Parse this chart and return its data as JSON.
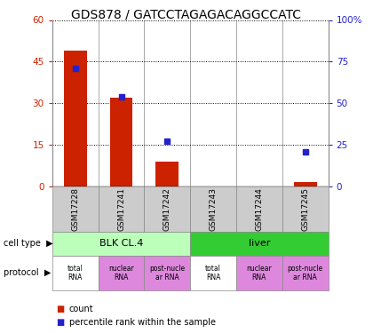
{
  "title": "GDS878 / GATCCTAGAGACAGGCCATC",
  "samples": [
    "GSM17228",
    "GSM17241",
    "GSM17242",
    "GSM17243",
    "GSM17244",
    "GSM17245"
  ],
  "counts": [
    49,
    32,
    9,
    0,
    0,
    1.5
  ],
  "percentiles": [
    71,
    54,
    27,
    0,
    0,
    21
  ],
  "ylim_left": [
    0,
    60
  ],
  "ylim_right": [
    0,
    100
  ],
  "yticks_left": [
    0,
    15,
    30,
    45,
    60
  ],
  "yticks_right": [
    0,
    25,
    50,
    75,
    100
  ],
  "ytick_labels_left": [
    "0",
    "15",
    "30",
    "45",
    "60"
  ],
  "ytick_labels_right": [
    "0",
    "25",
    "50",
    "75",
    "100%"
  ],
  "bar_color": "#cc2200",
  "dot_color": "#2222cc",
  "cell_types": [
    {
      "label": "BLK CL.4",
      "start": 0,
      "end": 3,
      "color": "#bbffbb"
    },
    {
      "label": "liver",
      "start": 3,
      "end": 6,
      "color": "#33cc33"
    }
  ],
  "protocols": [
    {
      "label": "total\nRNA",
      "color": "#ffffff"
    },
    {
      "label": "nuclear\nRNA",
      "color": "#dd88dd"
    },
    {
      "label": "post-nucle\nar RNA",
      "color": "#dd88dd"
    },
    {
      "label": "total\nRNA",
      "color": "#ffffff"
    },
    {
      "label": "nuclear\nRNA",
      "color": "#dd88dd"
    },
    {
      "label": "post-nucle\nar RNA",
      "color": "#dd88dd"
    }
  ],
  "legend_count_label": "count",
  "legend_pct_label": "percentile rank within the sample",
  "cell_type_label": "cell type",
  "protocol_label": "protocol",
  "title_fontsize": 10,
  "tick_fontsize": 7.5
}
